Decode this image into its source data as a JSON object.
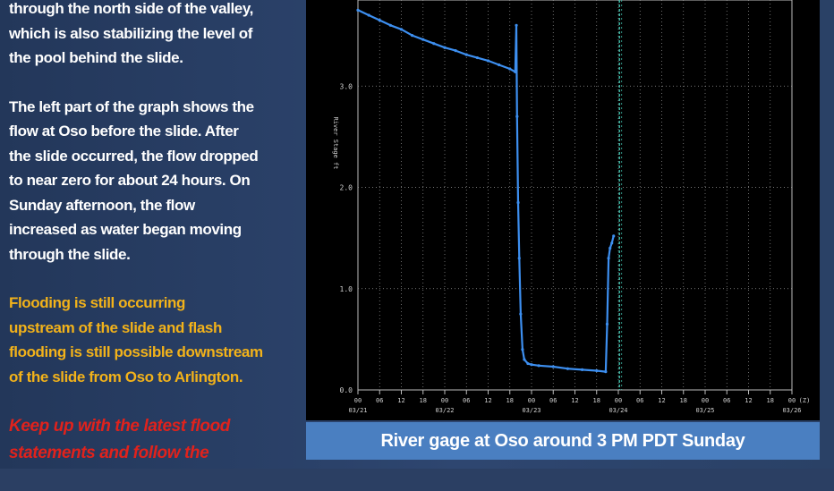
{
  "text_panel": {
    "paragraph1": [
      "through the north side of the valley,",
      "which is also stabilizing the level of",
      "the pool behind the slide."
    ],
    "paragraph2": [
      "The left part of the graph shows the",
      "flow at Oso before the slide.  After",
      "the slide occurred, the flow dropped",
      "to near zero for about 24 hours.  On",
      "Sunday afternoon, the flow",
      "increased as water began moving",
      "through the slide."
    ],
    "paragraph3": [
      "Flooding is still occurring",
      "upstream of the slide and flash",
      "flooding is still possible downstream",
      "of the slide from Oso to Arlington."
    ],
    "paragraph4": [
      "Keep up with the latest flood",
      "statements and follow the"
    ]
  },
  "caption": "River gage at Oso around 3 PM PDT Sunday",
  "colors": {
    "text_white": "#ffffff",
    "text_orange": "#f2b21a",
    "text_red": "#e0221c",
    "caption_bg": "#4a7fc1",
    "series": "#3d8ff0",
    "marker_line": "#3fb8a6"
  },
  "chart_data": {
    "type": "line",
    "ylabel": "River Stage ft",
    "y_tick_labels": [
      "0.0",
      "1.0",
      "2.0",
      "3.0"
    ],
    "y_ticks": [
      0,
      1,
      2,
      3
    ],
    "ylim": [
      0,
      3.85
    ],
    "xlim": [
      0,
      120
    ],
    "x_tick_values": [
      0,
      6,
      12,
      18,
      24,
      30,
      36,
      42,
      48,
      54,
      60,
      66,
      72,
      78,
      84,
      90,
      96,
      102,
      108,
      114,
      120
    ],
    "x_tick_labels": [
      "00",
      "06",
      "12",
      "18",
      "00",
      "06",
      "12",
      "18",
      "00",
      "06",
      "12",
      "18",
      "00",
      "06",
      "12",
      "18",
      "00",
      "06",
      "12",
      "18",
      "00"
    ],
    "x_unit_label": "(Z)",
    "date_labels": [
      {
        "x": 0,
        "label": "03/21"
      },
      {
        "x": 24,
        "label": "03/22"
      },
      {
        "x": 48,
        "label": "03/23"
      },
      {
        "x": 72,
        "label": "03/24"
      },
      {
        "x": 96,
        "label": "03/25"
      },
      {
        "x": 120,
        "label": "03/26"
      }
    ],
    "current_time_marker_x": 72.3,
    "grid": true,
    "series": [
      {
        "x": [
          0,
          3,
          6,
          9,
          12,
          15,
          18,
          21,
          24,
          27,
          30,
          33,
          36,
          39,
          42,
          43.5,
          43.8,
          44.0,
          44.3,
          44.6,
          45.0,
          45.5,
          46.0,
          47.0,
          48.0,
          50.0,
          54.0,
          58.0,
          62.0,
          66.0,
          68.5,
          68.9,
          69.3,
          69.7,
          70.2,
          70.7
        ],
        "y": [
          3.75,
          3.7,
          3.65,
          3.6,
          3.56,
          3.5,
          3.46,
          3.42,
          3.38,
          3.35,
          3.31,
          3.28,
          3.25,
          3.21,
          3.17,
          3.14,
          3.6,
          2.7,
          1.85,
          1.3,
          0.75,
          0.4,
          0.3,
          0.26,
          0.25,
          0.24,
          0.23,
          0.21,
          0.2,
          0.19,
          0.18,
          0.65,
          1.3,
          1.4,
          1.45,
          1.52
        ]
      }
    ]
  }
}
